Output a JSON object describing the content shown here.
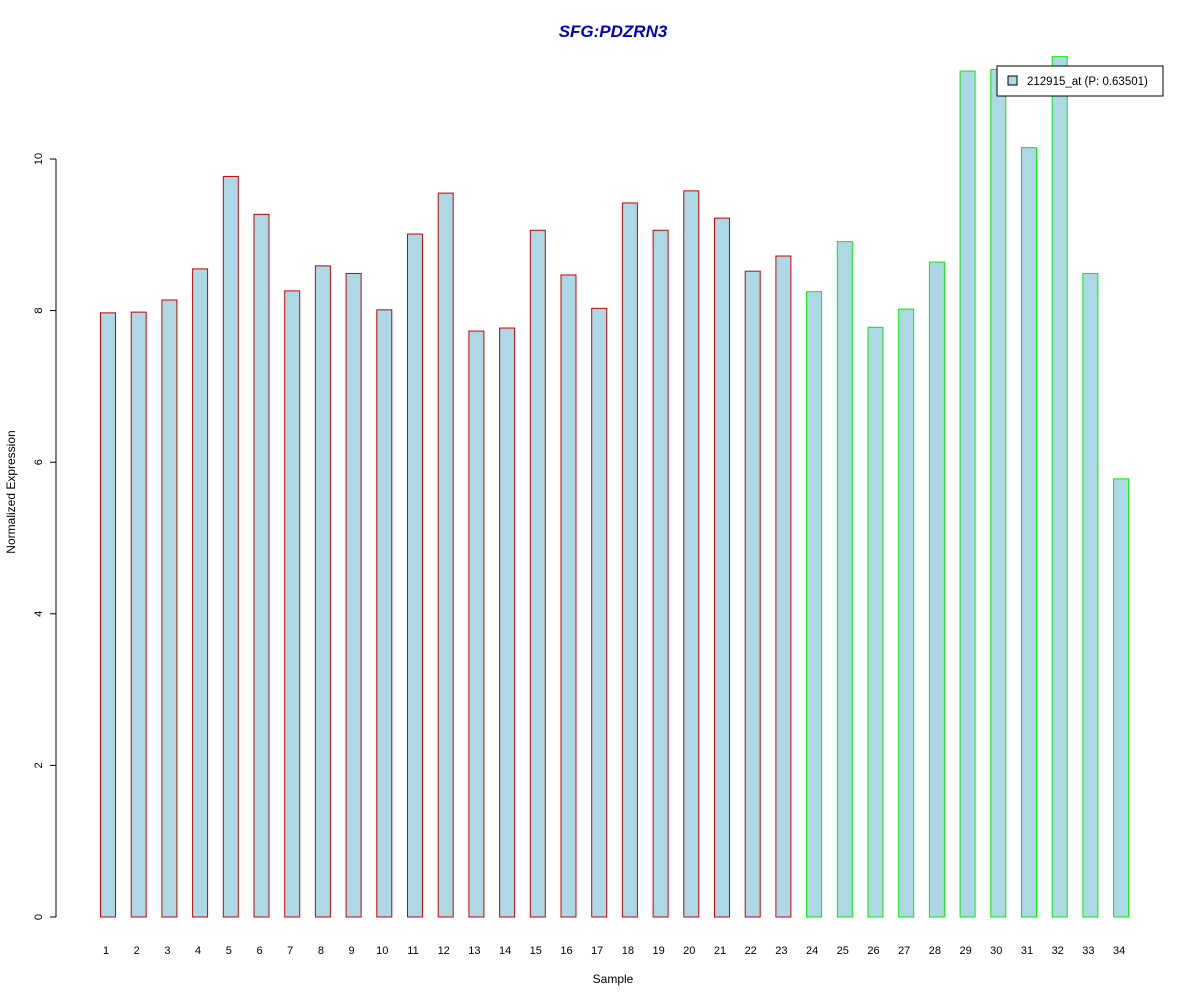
{
  "chart_data": {
    "type": "bar",
    "title": "SFG:PDZRN3",
    "xlabel": "Sample",
    "ylabel": "Normalized Expression",
    "ylim": [
      0,
      11.3
    ],
    "yticks": [
      0,
      2,
      4,
      6,
      8,
      10
    ],
    "grid": false,
    "legend_position": "top-right",
    "categories": [
      "1",
      "2",
      "3",
      "4",
      "5",
      "6",
      "7",
      "8",
      "9",
      "10",
      "11",
      "12",
      "13",
      "14",
      "15",
      "16",
      "17",
      "18",
      "19",
      "20",
      "21",
      "22",
      "23",
      "24",
      "25",
      "26",
      "27",
      "28",
      "29",
      "30",
      "31",
      "32",
      "33",
      "34"
    ],
    "series": [
      {
        "name": "212915_at (P: 0.63501)",
        "values": [
          7.97,
          7.98,
          8.14,
          8.55,
          9.77,
          9.27,
          8.26,
          8.59,
          8.49,
          8.01,
          9.01,
          9.55,
          7.73,
          7.77,
          9.06,
          8.47,
          8.03,
          9.42,
          9.06,
          9.58,
          9.22,
          8.52,
          8.72,
          8.25,
          8.91,
          7.78,
          8.02,
          8.64,
          11.16,
          11.18,
          10.15,
          11.35,
          8.49,
          5.78
        ]
      }
    ],
    "groups": [
      {
        "from": 1,
        "to": 23,
        "border_color": "#cc0000"
      },
      {
        "from": 24,
        "to": 34,
        "border_color": "#00ee00"
      }
    ],
    "bar_fill": "#add8e6",
    "title_color": "#0000cc"
  }
}
